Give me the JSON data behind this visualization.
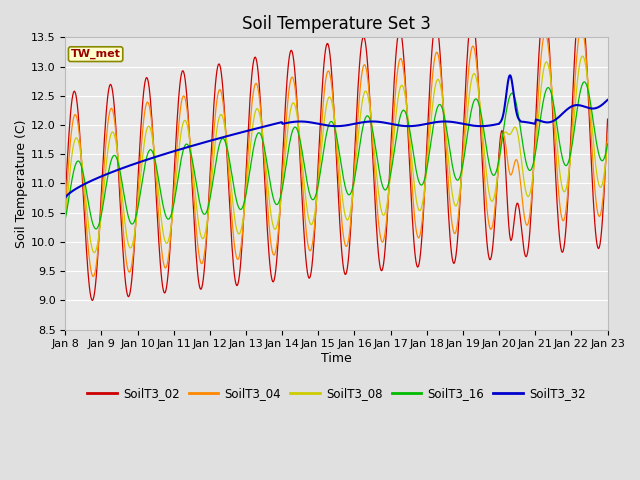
{
  "title": "Soil Temperature Set 3",
  "xlabel": "Time",
  "ylabel": "Soil Temperature (C)",
  "annotation": "TW_met",
  "ylim": [
    8.5,
    13.5
  ],
  "yticks": [
    8.5,
    9.0,
    9.5,
    10.0,
    10.5,
    11.0,
    11.5,
    12.0,
    12.5,
    13.0,
    13.5
  ],
  "series_colors": {
    "SoilT3_02": "#cc0000",
    "SoilT3_04": "#ff8800",
    "SoilT3_08": "#cccc00",
    "SoilT3_16": "#00bb00",
    "SoilT3_32": "#0000cc"
  },
  "bg_color": "#e0e0e0",
  "plot_bg": "#e8e8e8",
  "grid_color": "#ffffff",
  "tick_labels": [
    "Jan 8",
    "Jan 9",
    "Jan 10",
    "Jan 11",
    "Jan 12",
    "Jan 13",
    "Jan 14",
    "Jan 15",
    "Jan 16",
    "Jan 17",
    "Jan 18",
    "Jan 19",
    "Jan 20",
    "Jan 21",
    "Jan 22",
    "Jan 23"
  ],
  "title_fontsize": 12,
  "label_fontsize": 9,
  "tick_fontsize": 8
}
